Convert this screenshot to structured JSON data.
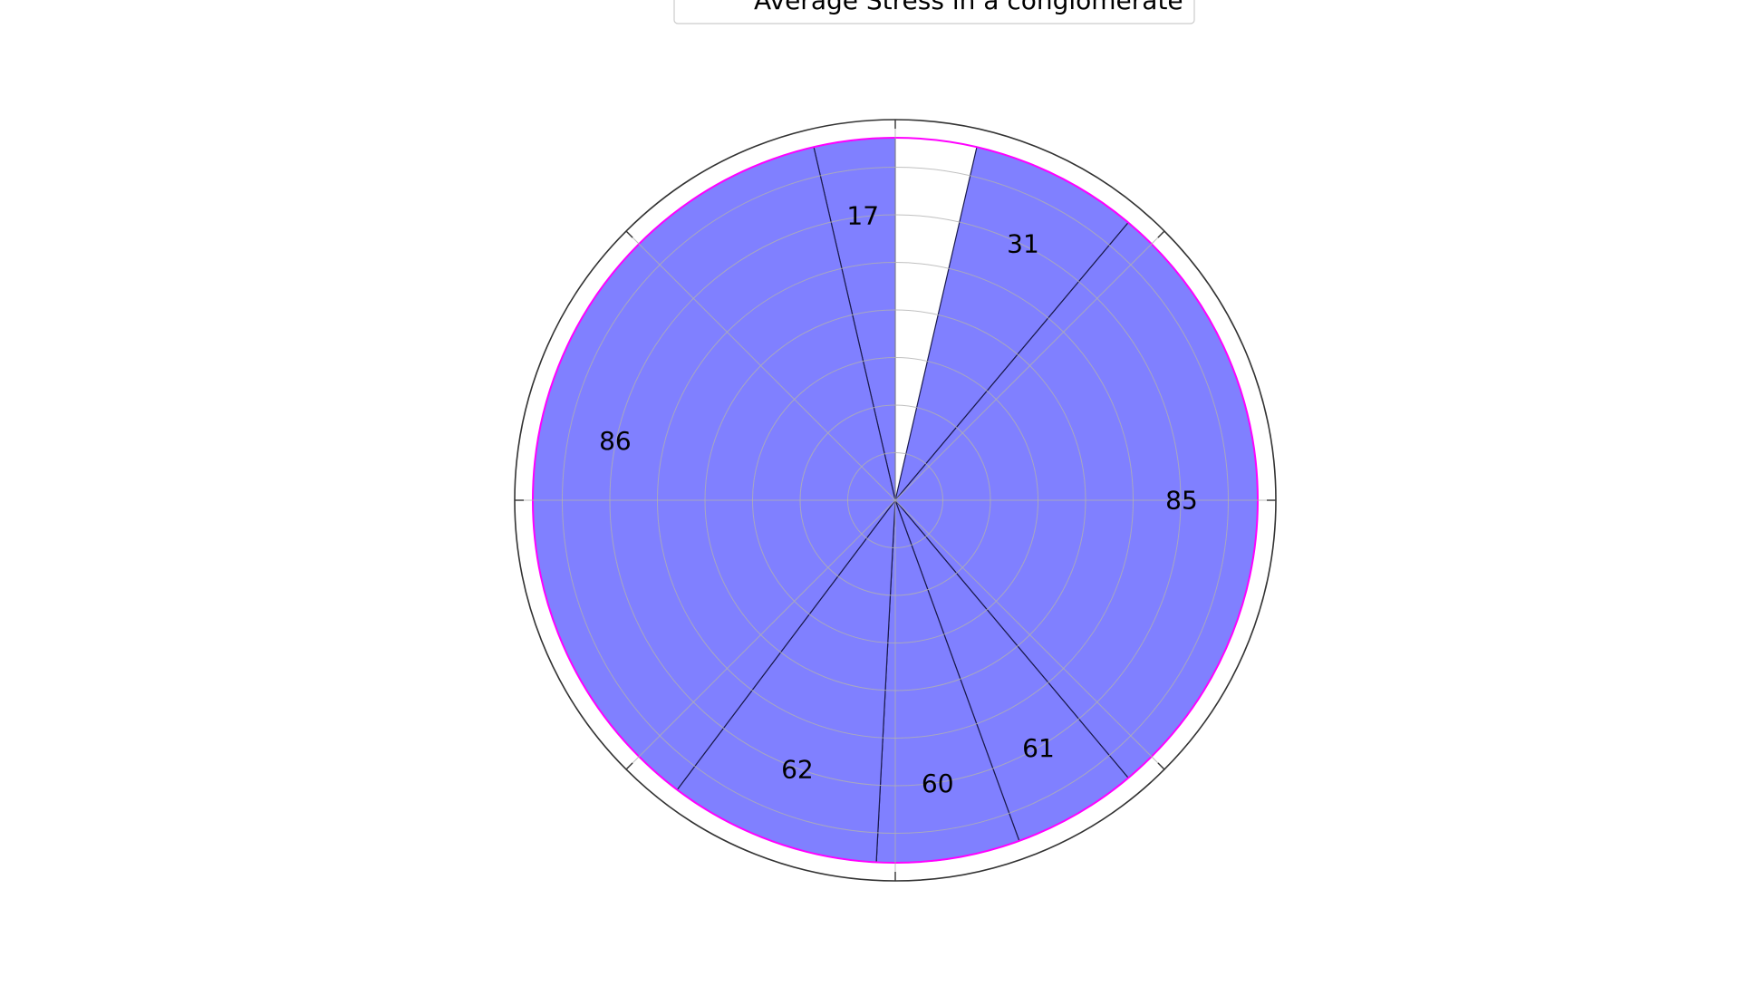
{
  "chart_data": {
    "type": "pie",
    "legend": {
      "label": "Average Stress in a conglomerate",
      "placement": "top-center",
      "line_color": "#ff00ff"
    },
    "slices": [
      {
        "label": "17",
        "angle_start": 90,
        "angle_end": 103
      },
      {
        "label": "31",
        "angle_start": 50,
        "angle_end": 77
      },
      {
        "label": "85",
        "angle_start": -50,
        "angle_end": 50
      },
      {
        "label": "61",
        "angle_start": -70,
        "angle_end": -50
      },
      {
        "label": "60",
        "angle_start": -93,
        "angle_end": -70
      },
      {
        "label": "62",
        "angle_start": -127,
        "angle_end": -93
      },
      {
        "label": "86",
        "angle_start": 103,
        "angle_end": 233
      }
    ],
    "fill_color": "#8080ff",
    "edge_color": "#1a1a4d",
    "outline_color": "#ff00ff",
    "grid": true
  }
}
